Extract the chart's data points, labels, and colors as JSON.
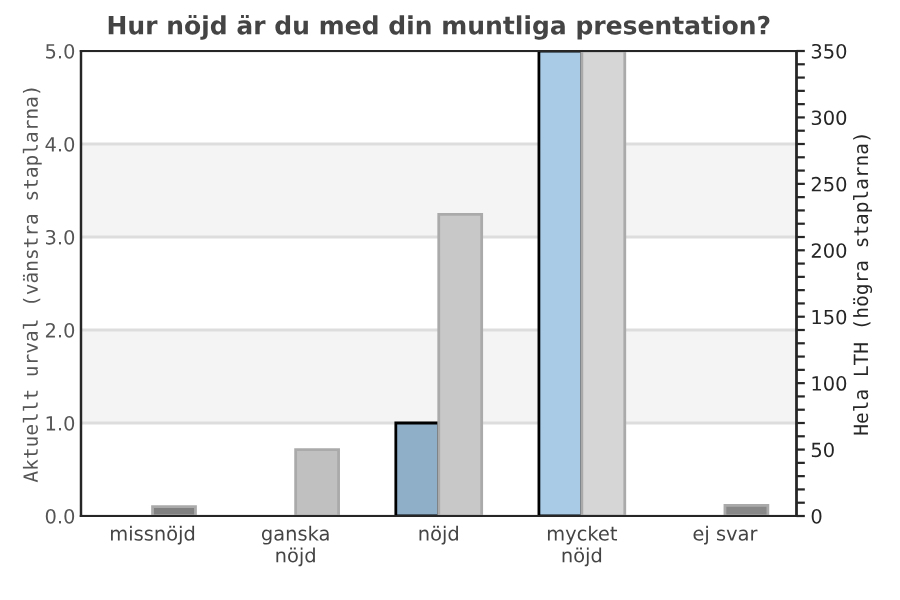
{
  "chart_data": {
    "type": "bar",
    "title": "Hur nöjd är du med din muntliga presentation?",
    "ylabel": "Aktuellt urval (vänstra staplarna)",
    "y2label": "Hela LTH (högra staplarna)",
    "categories": [
      "missnöjd",
      "ganska\nnöjd",
      "nöjd",
      "mycket\nnöjd",
      "ej svar"
    ],
    "series": [
      {
        "colors": [
          "#8fafc9",
          "#8fafc9",
          "#8fafc9",
          "#a9cbe6",
          "#8fafc9"
        ],
        "values": [
          0,
          0,
          1.0,
          5.0,
          0
        ]
      },
      {
        "axis": "y2",
        "colors": [
          "#808080",
          "#c0c0c0",
          "#c8c8c8",
          "#d6d6d6",
          "#888888"
        ],
        "values": [
          7,
          50,
          227,
          350,
          8
        ]
      }
    ],
    "ylim": [
      0,
      5
    ],
    "yticks": [
      {
        "value": 0,
        "label": "0.0"
      },
      {
        "value": 1,
        "label": "1.0"
      },
      {
        "value": 2,
        "label": "2.0"
      },
      {
        "value": 3,
        "label": "3.0"
      },
      {
        "value": 4,
        "label": "4.0"
      },
      {
        "value": 5,
        "label": "5.0"
      }
    ],
    "y2lim": [
      0,
      350
    ],
    "y2ticks": [
      0,
      {
        "value": 10,
        "label": null
      },
      {
        "value": 20,
        "label": null
      },
      {
        "value": 30,
        "label": null
      },
      {
        "value": 40,
        "label": null
      },
      50,
      {
        "value": 60,
        "label": null
      },
      {
        "value": 70,
        "label": null
      },
      {
        "value": 80,
        "label": null
      },
      {
        "value": 90,
        "label": null
      },
      100,
      {
        "value": 110,
        "label": null
      },
      {
        "value": 120,
        "label": null
      },
      {
        "value": 130,
        "label": null
      },
      {
        "value": 140,
        "label": null
      },
      150,
      {
        "value": 160,
        "label": null
      },
      {
        "value": 170,
        "label": null
      },
      {
        "value": 180,
        "label": null
      },
      {
        "value": 190,
        "label": null
      },
      200,
      {
        "value": 210,
        "label": null
      },
      {
        "value": 220,
        "label": null
      },
      {
        "value": 230,
        "label": null
      },
      {
        "value": 240,
        "label": null
      },
      250,
      {
        "value": 260,
        "label": null
      },
      {
        "value": 270,
        "label": null
      },
      {
        "value": 280,
        "label": null
      },
      {
        "value": 290,
        "label": null
      },
      300,
      {
        "value": 310,
        "label": null
      },
      {
        "value": 320,
        "label": null
      },
      {
        "value": 330,
        "label": null
      },
      {
        "value": 340,
        "label": null
      },
      350
    ],
    "bands": [
      {
        "axis": "y",
        "from": 1,
        "to": 2,
        "color": "#f4f4f4"
      },
      {
        "axis": "y",
        "from": 3,
        "to": 4,
        "color": "#f4f4f4"
      }
    ],
    "grid": "y"
  }
}
